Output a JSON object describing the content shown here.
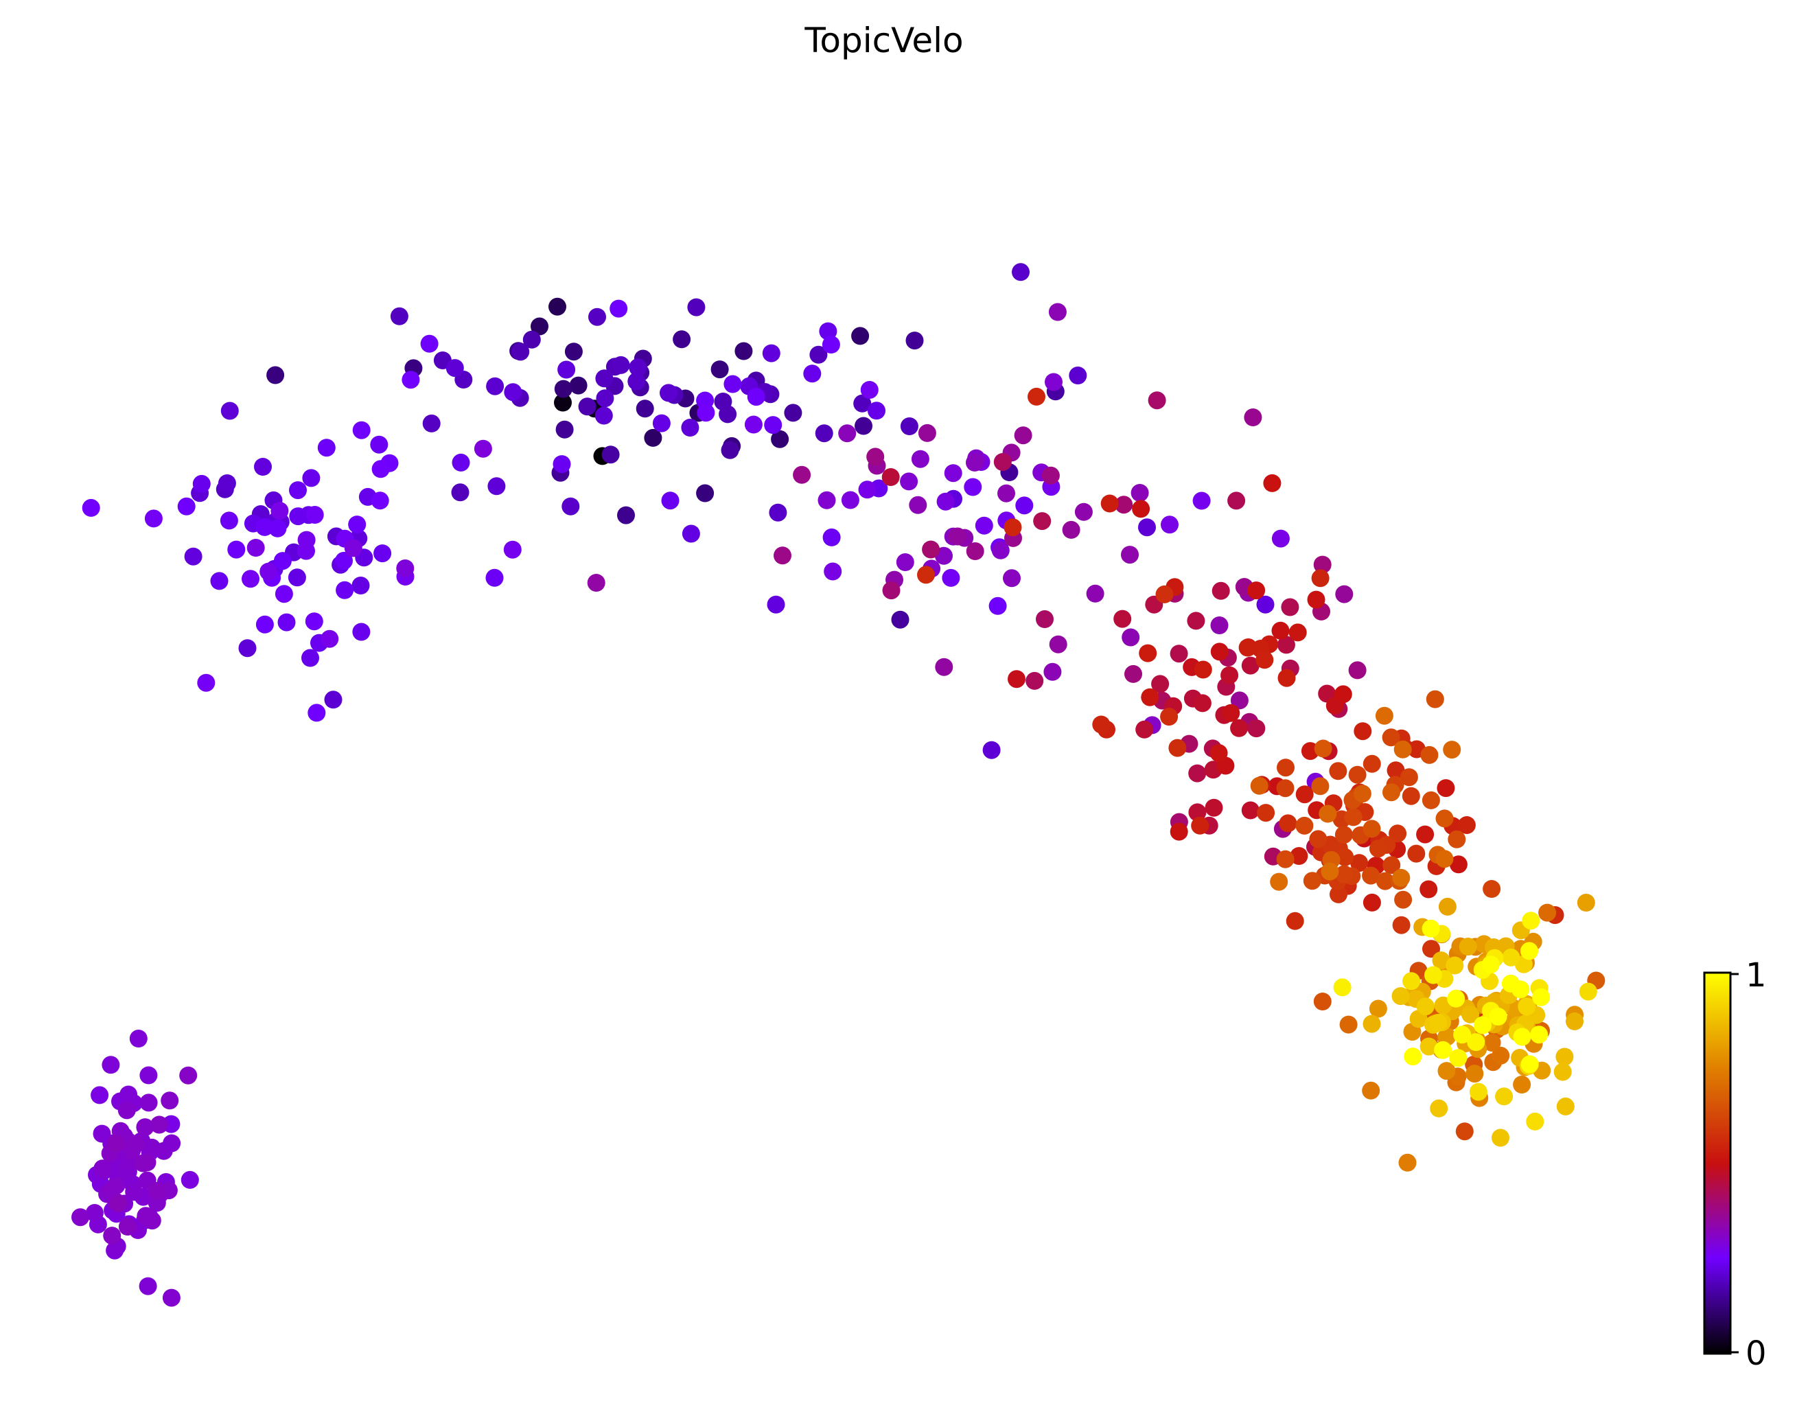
{
  "chart_data": {
    "type": "scatter",
    "title": "TopicVelo",
    "xlabel": "",
    "ylabel": "",
    "axes_visible": false,
    "grid": false,
    "colormap": "gnuplot",
    "colorbar": {
      "placement": "right",
      "min": 0,
      "max": 1,
      "tick_labels": [
        "0",
        "1"
      ],
      "colors": [
        "#000000",
        "#7000ff",
        "#c81010",
        "#e08000",
        "#ffff00"
      ]
    },
    "xlim": [
      0,
      100
    ],
    "ylim": [
      0,
      100
    ],
    "clusters": [
      {
        "name": "",
        "cx": 2.8,
        "cy": 11.5,
        "sx": 1.5,
        "sy": 4.2,
        "n": 80,
        "v": 0.3,
        "vs": 0.01,
        "seed": 11
      },
      {
        "name": "",
        "cx": 14.0,
        "cy": 65.0,
        "sx": 4.5,
        "sy": 5.5,
        "n": 70,
        "v": 0.24,
        "vs": 0.025,
        "seed": 12
      },
      {
        "name": "",
        "cx": 36.0,
        "cy": 77.0,
        "sx": 9.5,
        "sy": 5.0,
        "n": 90,
        "v": 0.18,
        "vs": 0.04,
        "seed": 13
      },
      {
        "name": "",
        "cx": 58.0,
        "cy": 67.0,
        "sx": 8.0,
        "sy": 6.5,
        "n": 75,
        "v": 0.33,
        "vs": 0.06,
        "seed": 14
      },
      {
        "name": "",
        "cx": 73.0,
        "cy": 53.0,
        "sx": 5.5,
        "sy": 6.5,
        "n": 85,
        "v": 0.48,
        "vs": 0.06,
        "seed": 15
      },
      {
        "name": "",
        "cx": 81.5,
        "cy": 40.0,
        "sx": 3.5,
        "sy": 4.5,
        "n": 90,
        "v": 0.6,
        "vs": 0.05,
        "seed": 16
      },
      {
        "name": "",
        "cx": 87.5,
        "cy": 25.5,
        "sx": 2.8,
        "sy": 4.2,
        "n": 140,
        "v": 0.84,
        "vs": 0.11,
        "seed": 17
      }
    ],
    "points": [
      {
        "x": 30.0,
        "y": 76.5,
        "v": 0.02
      },
      {
        "x": 32.5,
        "y": 72.0,
        "v": 0.0
      },
      {
        "x": 32.0,
        "y": 76.0,
        "v": 0.03
      },
      {
        "x": 60.0,
        "y": 77.0,
        "v": 0.55
      },
      {
        "x": 53.0,
        "y": 62.0,
        "v": 0.56
      },
      {
        "x": 58.5,
        "y": 66.0,
        "v": 0.55
      },
      {
        "x": 43.5,
        "y": 59.5,
        "v": 0.22
      },
      {
        "x": 12.5,
        "y": 58.0,
        "v": 0.24
      },
      {
        "x": 14.0,
        "y": 55.0,
        "v": 0.23
      },
      {
        "x": 59.0,
        "y": 87.5,
        "v": 0.2
      },
      {
        "x": 74.5,
        "y": 59.5,
        "v": 0.22
      },
      {
        "x": 67.0,
        "y": 66.0,
        "v": 0.21
      },
      {
        "x": 85.0,
        "y": 30.5,
        "v": 0.58
      },
      {
        "x": 83.5,
        "y": 12.5,
        "v": 0.74
      },
      {
        "x": 91.5,
        "y": 22.5,
        "v": 0.76
      }
    ]
  }
}
